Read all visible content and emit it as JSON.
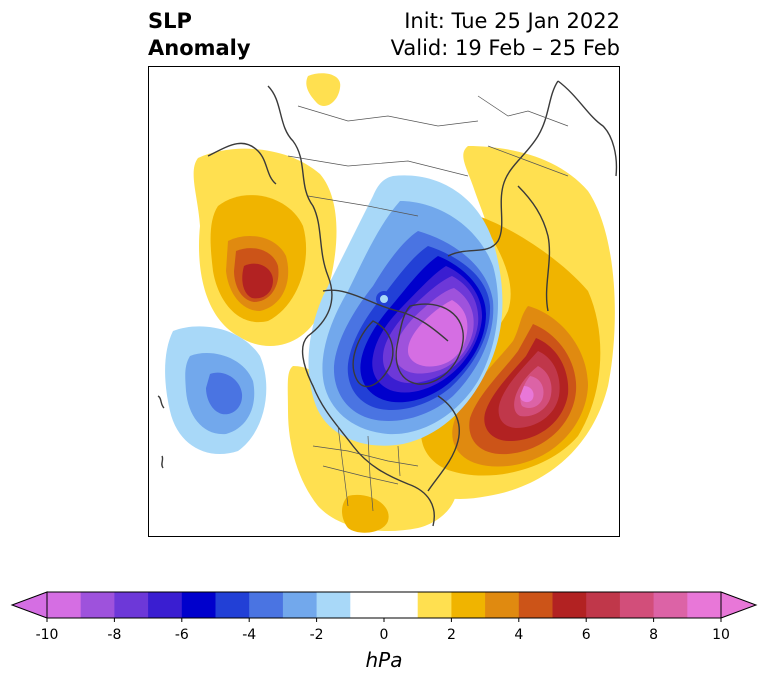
{
  "header": {
    "variable_line1": "SLP",
    "variable_line2": "Anomaly",
    "init_text": "Init: Tue 25 Jan 2022",
    "valid_text": "Valid: 19 Feb – 25 Feb"
  },
  "colorbar": {
    "unit": "hPa",
    "ticks": [
      "-10",
      "-8",
      "-6",
      "-4",
      "-2",
      "0",
      "2",
      "4",
      "6",
      "8",
      "10"
    ],
    "colors": [
      "#d56ee3",
      "#9e52dc",
      "#6d38d8",
      "#3a1ed1",
      "#0000cc",
      "#2240d6",
      "#4a74e2",
      "#72a8ec",
      "#a8d8f8",
      "#ffffff",
      "#ffffff",
      "#ffe050",
      "#f0b400",
      "#e08a10",
      "#cc5418",
      "#b22222",
      "#c0374a",
      "#d24e7a",
      "#dc63a6",
      "#e877d8"
    ],
    "extend": "both"
  },
  "map": {
    "projection": "north-polar-stereographic",
    "features": {
      "negative_center_arctic": "#d56ee3",
      "positive_center_north_atlantic": "#e877d8",
      "positive_center_north_pacific": "#b22222",
      "negative_center_east_pacific": "#4a74e2"
    }
  }
}
